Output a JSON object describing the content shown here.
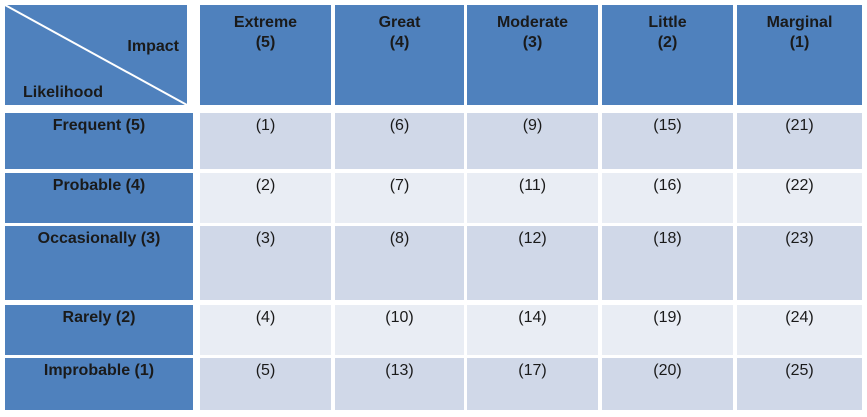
{
  "table": {
    "corner_top": "Impact",
    "corner_bottom": "Likelihood",
    "columns": [
      {
        "name": "Extreme",
        "level": "(5)"
      },
      {
        "name": "Great",
        "level": "(4)"
      },
      {
        "name": "Moderate",
        "level": "(3)"
      },
      {
        "name": "Little",
        "level": "(2)"
      },
      {
        "name": "Marginal",
        "level": "(1)"
      }
    ],
    "rows": [
      {
        "label": "Frequent (5)",
        "cells": [
          "(1)",
          "(6)",
          "(9)",
          "(15)",
          "(21)"
        ]
      },
      {
        "label": "Probable (4)",
        "cells": [
          "(2)",
          "(7)",
          "(11)",
          "(16)",
          "(22)"
        ]
      },
      {
        "label": "Occasionally (3)",
        "cells": [
          "(3)",
          "(8)",
          "(12)",
          "(18)",
          "(23)"
        ]
      },
      {
        "label": "Rarely (2)",
        "cells": [
          "(4)",
          "(10)",
          "(14)",
          "(19)",
          "(24)"
        ]
      },
      {
        "label": "Improbable (1)",
        "cells": [
          "(5)",
          "(13)",
          "(17)",
          "(20)",
          "(25)"
        ]
      }
    ]
  }
}
